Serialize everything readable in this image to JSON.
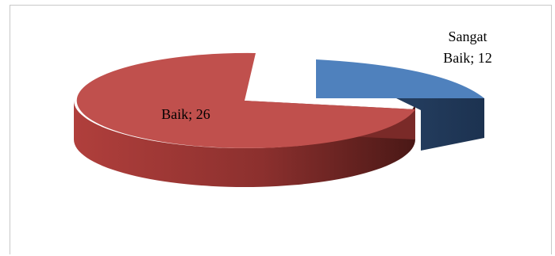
{
  "chart_data": {
    "type": "pie",
    "style": "3d-exploded",
    "slices": [
      {
        "name": "Sangat Baik",
        "value": 12,
        "label_line1": "Sangat",
        "label_line2": "Baik; 12",
        "color": "#4f81bd"
      },
      {
        "name": "Baik",
        "value": 26,
        "label_line1": "Baik; 26",
        "color": "#c0504d"
      }
    ],
    "legend": "none"
  }
}
